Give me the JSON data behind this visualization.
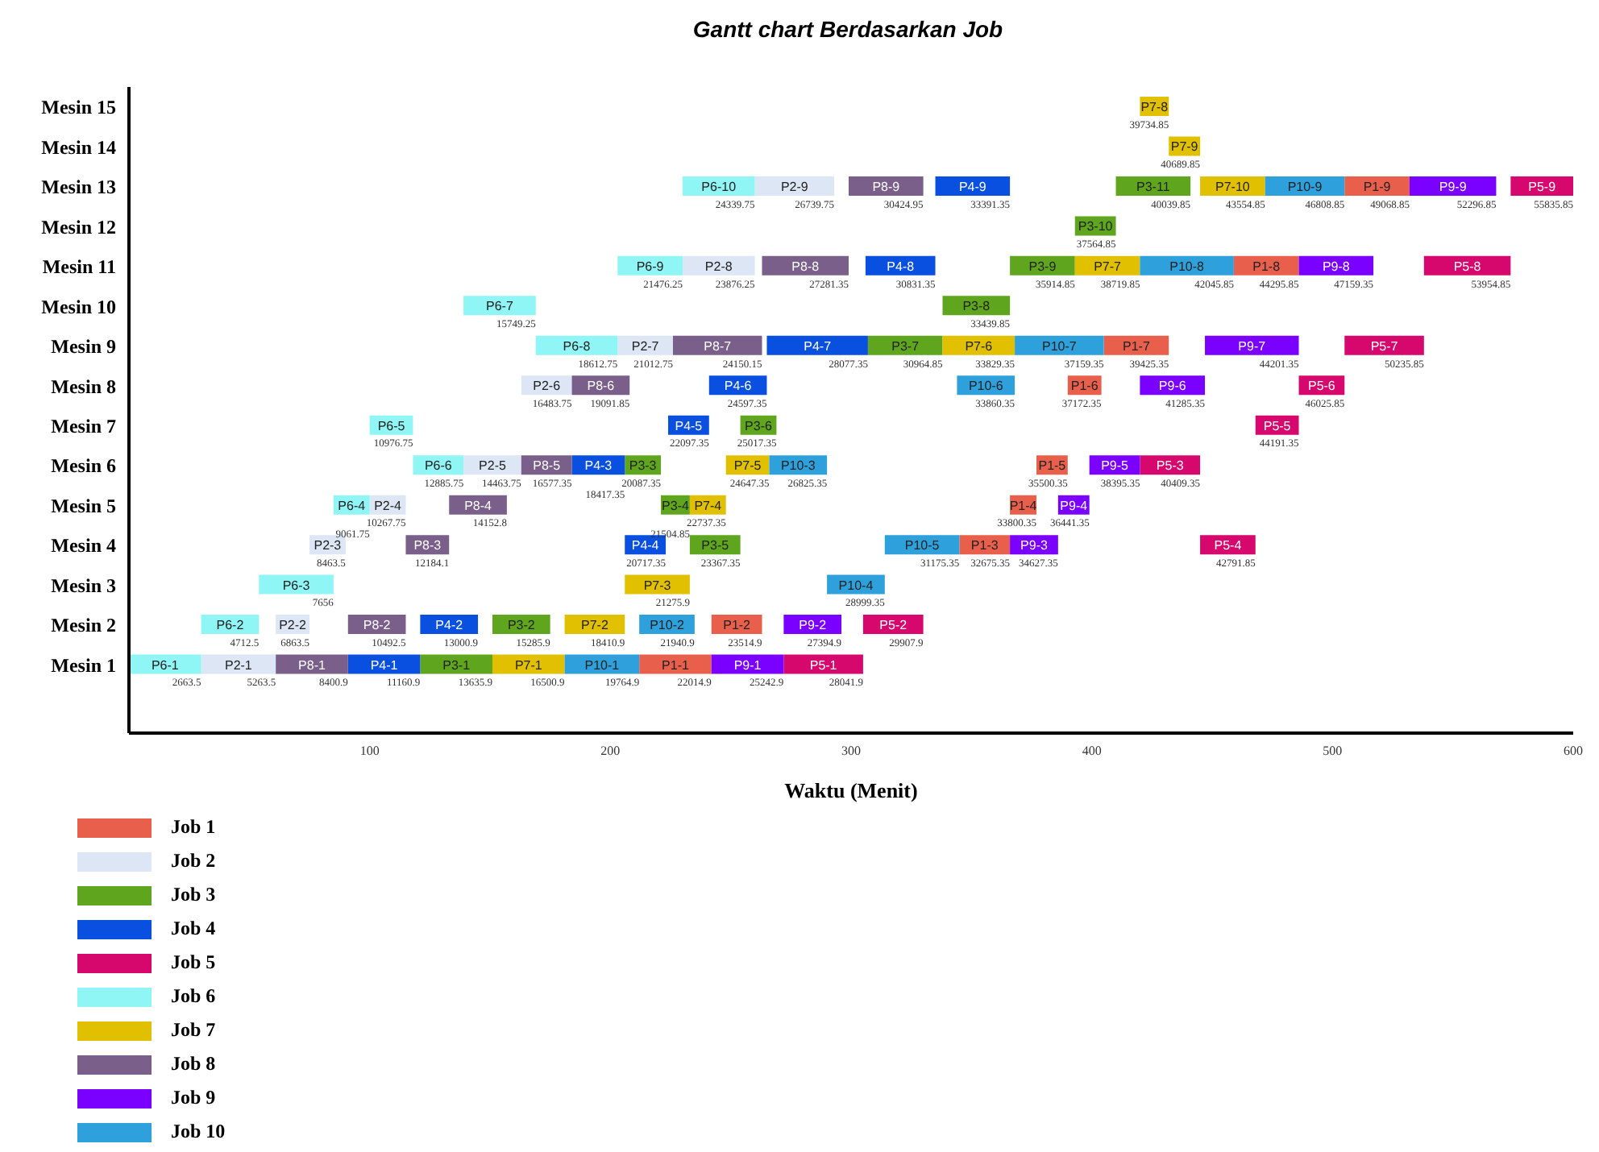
{
  "chart_data": {
    "type": "bar",
    "orientation": "horizontal",
    "title": "Gantt chart Berdasarkan Job",
    "xlabel": "Waktu (Menit)",
    "legend": "bottom left",
    "categories": [
      "Mesin 15",
      "Mesin 14",
      "Mesin 13",
      "Mesin 12",
      "Mesin 11",
      "Mesin 10",
      "Mesin 9",
      "Mesin 8",
      "Mesin 7",
      "Mesin 6",
      "Mesin 5",
      "Mesin 4",
      "Mesin 3",
      "Mesin 2",
      "Mesin 1"
    ],
    "xlim": [
      0,
      600
    ],
    "xticks": [
      100,
      200,
      300,
      400,
      500,
      600
    ],
    "series": [
      {
        "name": "Job 1",
        "color": "#e8604c",
        "base": [
          null,
          null,
          505,
          null,
          459,
          null,
          405,
          390,
          null,
          377,
          366,
          345,
          null,
          242,
          212
        ],
        "values": [
          null,
          null,
          27,
          null,
          27,
          null,
          27,
          14,
          null,
          13,
          11,
          21,
          null,
          21,
          30
        ],
        "value_labels": [
          null,
          null,
          "P1-9",
          null,
          "P1-8",
          null,
          "P1-7",
          "P1-6",
          null,
          "P1-5",
          "P1-4",
          "P1-3",
          null,
          "P1-2",
          "P1-1"
        ]
      },
      {
        "name": "Job 2",
        "color": "#dce6f5",
        "base": [
          null,
          null,
          260,
          null,
          230,
          null,
          203,
          163,
          null,
          139,
          100,
          75,
          null,
          61,
          30
        ],
        "values": [
          null,
          null,
          33,
          null,
          30,
          null,
          23,
          21,
          null,
          24,
          15,
          15,
          null,
          14,
          31
        ],
        "value_labels": [
          null,
          null,
          "P2-9",
          null,
          "P2-8",
          null,
          "P2-7",
          "P2-6",
          null,
          "P2-5",
          "P2-4",
          "P2-3",
          null,
          "P2-2",
          "P2-1"
        ]
      },
      {
        "name": "Job 3",
        "color": "#5fa61e",
        "base": [
          null,
          null,
          410,
          393,
          366,
          338,
          307,
          null,
          254,
          206,
          221,
          233,
          null,
          151,
          121
        ],
        "values": [
          null,
          null,
          31,
          17,
          27,
          28,
          31,
          null,
          15,
          15,
          12,
          21,
          null,
          24,
          30
        ],
        "value_labels": [
          null,
          null,
          "P3-11",
          "P3-10",
          "P3-9",
          "P3-8",
          "P3-7",
          null,
          "P3-6",
          "P3-3",
          "P3-4",
          "P3-5",
          null,
          "P3-2",
          "P3-1"
        ]
      },
      {
        "name": "Job 4",
        "color": "#0a50e0",
        "base": [
          null,
          null,
          335,
          null,
          306,
          null,
          265,
          241,
          224,
          184,
          null,
          206,
          null,
          121,
          91
        ],
        "values": [
          null,
          null,
          31,
          null,
          29,
          null,
          42,
          24,
          17,
          22,
          null,
          17,
          null,
          24,
          30
        ],
        "value_labels": [
          null,
          null,
          "P4-9",
          null,
          "P4-8",
          null,
          "P4-7",
          "P4-6",
          "P4-5",
          "P4-3",
          null,
          "P4-4",
          null,
          "P4-2",
          "P4-1"
        ]
      },
      {
        "name": "Job 5",
        "color": "#d6086e",
        "base": [
          null,
          null,
          574,
          null,
          538,
          null,
          505,
          486,
          468,
          420,
          null,
          445,
          null,
          305,
          272
        ],
        "values": [
          null,
          null,
          26,
          null,
          36,
          null,
          33,
          19,
          18,
          25,
          null,
          23,
          null,
          25,
          33
        ],
        "value_labels": [
          null,
          null,
          "P5-9",
          null,
          "P5-8",
          null,
          "P5-7",
          "P5-6",
          "P5-5",
          "P5-3",
          null,
          "P5-4",
          null,
          "P5-2",
          "P5-1"
        ]
      },
      {
        "name": "Job 6",
        "color": "#8ff5f5",
        "base": [
          null,
          null,
          230,
          null,
          203,
          139,
          169,
          null,
          100,
          118,
          85,
          null,
          54,
          30,
          0
        ],
        "values": [
          null,
          null,
          30,
          null,
          27,
          30,
          34,
          null,
          18,
          21,
          15,
          null,
          31,
          24,
          30
        ],
        "value_labels": [
          null,
          null,
          "P6-10",
          null,
          "P6-9",
          "P6-7",
          "P6-8",
          null,
          "P6-5",
          "P6-6",
          "P6-4",
          null,
          "P6-3",
          "P6-2",
          "P6-1"
        ]
      },
      {
        "name": "Job 7",
        "color": "#e0c000",
        "base": [
          420,
          432,
          445,
          null,
          393,
          null,
          338,
          null,
          null,
          248,
          233,
          null,
          206,
          181,
          151
        ],
        "values": [
          12,
          13,
          27,
          null,
          27,
          null,
          30,
          null,
          null,
          18,
          15,
          null,
          27,
          25,
          30
        ],
        "value_labels": [
          "P7-8",
          "P7-9",
          "P7-10",
          null,
          "P7-7",
          null,
          "P7-6",
          null,
          null,
          "P7-5",
          "P7-4",
          null,
          "P7-3",
          "P7-2",
          "P7-1"
        ]
      },
      {
        "name": "Job 8",
        "color": "#7a5f8a",
        "base": [
          null,
          null,
          299,
          null,
          263,
          null,
          226,
          184,
          null,
          163,
          133,
          115,
          null,
          91,
          61
        ],
        "values": [
          null,
          null,
          31,
          null,
          36,
          null,
          37,
          24,
          null,
          21,
          24,
          18,
          null,
          24,
          30
        ],
        "value_labels": [
          null,
          null,
          "P8-9",
          null,
          "P8-8",
          null,
          "P8-7",
          "P8-6",
          null,
          "P8-5",
          "P8-4",
          "P8-3",
          null,
          "P8-2",
          "P8-1"
        ]
      },
      {
        "name": "Job 9",
        "color": "#7a00ff",
        "base": [
          null,
          null,
          532,
          null,
          486,
          null,
          447,
          420,
          null,
          399,
          386,
          366,
          null,
          272,
          242
        ],
        "values": [
          null,
          null,
          36,
          null,
          31,
          null,
          39,
          27,
          null,
          21,
          13,
          20,
          null,
          24,
          30
        ],
        "value_labels": [
          null,
          null,
          "P9-9",
          null,
          "P9-8",
          null,
          "P9-7",
          "P9-6",
          null,
          "P9-5",
          "P9-4",
          "P9-3",
          null,
          "P9-2",
          "P9-1"
        ]
      },
      {
        "name": "Job 10",
        "color": "#2ea0db",
        "base": [
          null,
          null,
          472,
          null,
          420,
          null,
          368,
          344,
          null,
          266,
          null,
          314,
          290,
          212,
          181
        ],
        "values": [
          null,
          null,
          33,
          null,
          39,
          null,
          37,
          24,
          null,
          24,
          null,
          31,
          24,
          23,
          31
        ],
        "value_labels": [
          null,
          null,
          "P10-9",
          null,
          "P10-8",
          null,
          "P10-7",
          "P10-6",
          null,
          "P10-3",
          null,
          "P10-5",
          "P10-4",
          "P10-2",
          "P10-1"
        ]
      }
    ],
    "annotations": [
      {
        "text": "22014.9",
        "x": 242,
        "y": "Mesin 1"
      },
      {
        "text": "23514.9",
        "x": 263,
        "y": "Mesin 2"
      },
      {
        "text": "32675.35",
        "x": 366,
        "y": "Mesin 4"
      },
      {
        "text": "33800.35",
        "x": 377,
        "y": "Mesin 5"
      },
      {
        "text": "35500.35",
        "x": 390,
        "y": "Mesin 6"
      },
      {
        "text": "37172.35",
        "x": 404,
        "y": "Mesin 8"
      },
      {
        "text": "39425.35",
        "x": 432,
        "y": "Mesin 9"
      },
      {
        "text": "44295.85",
        "x": 486,
        "y": "Mesin 11"
      },
      {
        "text": "49068.85",
        "x": 532,
        "y": "Mesin 13"
      },
      {
        "text": "5263.5",
        "x": 61,
        "y": "Mesin 1"
      },
      {
        "text": "6863.5",
        "x": 75,
        "y": "Mesin 2"
      },
      {
        "text": "8463.5",
        "x": 90,
        "y": "Mesin 4"
      },
      {
        "text": "10267.75",
        "x": 115,
        "y": "Mesin 5"
      },
      {
        "text": "14463.75",
        "x": 163,
        "y": "Mesin 6"
      },
      {
        "text": "16483.75",
        "x": 184,
        "y": "Mesin 8"
      },
      {
        "text": "21012.75",
        "x": 226,
        "y": "Mesin 9"
      },
      {
        "text": "23876.25",
        "x": 260,
        "y": "Mesin 11"
      },
      {
        "text": "26739.75",
        "x": 293,
        "y": "Mesin 13"
      },
      {
        "text": "13635.9",
        "x": 151,
        "y": "Mesin 1"
      },
      {
        "text": "15285.9",
        "x": 175,
        "y": "Mesin 2"
      },
      {
        "text": "20087.35",
        "x": 221,
        "y": "Mesin 6"
      },
      {
        "text": "21504.85",
        "x": 233,
        "y": "Mesin 5"
      },
      {
        "text": "23367.35",
        "x": 254,
        "y": "Mesin 4"
      },
      {
        "text": "25017.35",
        "x": 269,
        "y": "Mesin 7"
      },
      {
        "text": "30964.85",
        "x": 338,
        "y": "Mesin 9"
      },
      {
        "text": "33439.85",
        "x": 366,
        "y": "Mesin 10"
      },
      {
        "text": "35914.85",
        "x": 393,
        "y": "Mesin 11"
      },
      {
        "text": "37564.85",
        "x": 410,
        "y": "Mesin 12"
      },
      {
        "text": "40039.85",
        "x": 441,
        "y": "Mesin 13"
      },
      {
        "text": "11160.9",
        "x": 121,
        "y": "Mesin 1"
      },
      {
        "text": "13000.9",
        "x": 145,
        "y": "Mesin 2"
      },
      {
        "text": "18417.35",
        "x": 206,
        "y": "Mesin 6"
      },
      {
        "text": "20717.35",
        "x": 223,
        "y": "Mesin 4"
      },
      {
        "text": "22097.35",
        "x": 241,
        "y": "Mesin 7"
      },
      {
        "text": "24597.35",
        "x": 265,
        "y": "Mesin 8"
      },
      {
        "text": "28077.35",
        "x": 307,
        "y": "Mesin 9"
      },
      {
        "text": "30831.35",
        "x": 335,
        "y": "Mesin 11"
      },
      {
        "text": "33391.35",
        "x": 366,
        "y": "Mesin 13"
      },
      {
        "text": "28041.9",
        "x": 305,
        "y": "Mesin 1"
      },
      {
        "text": "29907.9",
        "x": 330,
        "y": "Mesin 2"
      },
      {
        "text": "40409.35",
        "x": 445,
        "y": "Mesin 6"
      },
      {
        "text": "42791.85",
        "x": 468,
        "y": "Mesin 4"
      },
      {
        "text": "44191.35",
        "x": 486,
        "y": "Mesin 7"
      },
      {
        "text": "46025.85",
        "x": 505,
        "y": "Mesin 8"
      },
      {
        "text": "50235.85",
        "x": 538,
        "y": "Mesin 9"
      },
      {
        "text": "53954.85",
        "x": 574,
        "y": "Mesin 11"
      },
      {
        "text": "55835.85",
        "x": 600,
        "y": "Mesin 13"
      },
      {
        "text": "2663.5",
        "x": 30,
        "y": "Mesin 1"
      },
      {
        "text": "4712.5",
        "x": 54,
        "y": "Mesin 2"
      },
      {
        "text": "7656",
        "x": 85,
        "y": "Mesin 3"
      },
      {
        "text": "9061.75",
        "x": 100,
        "y": "Mesin 5"
      },
      {
        "text": "10976.75",
        "x": 118,
        "y": "Mesin 7"
      },
      {
        "text": "12885.75",
        "x": 139,
        "y": "Mesin 6"
      },
      {
        "text": "15749.25",
        "x": 169,
        "y": "Mesin 10"
      },
      {
        "text": "18612.75",
        "x": 203,
        "y": "Mesin 9"
      },
      {
        "text": "21476.25",
        "x": 230,
        "y": "Mesin 11"
      },
      {
        "text": "24339.75",
        "x": 260,
        "y": "Mesin 13"
      },
      {
        "text": "16500.9",
        "x": 181,
        "y": "Mesin 1"
      },
      {
        "text": "18410.9",
        "x": 206,
        "y": "Mesin 2"
      },
      {
        "text": "21275.9",
        "x": 233,
        "y": "Mesin 3"
      },
      {
        "text": "22737.35",
        "x": 248,
        "y": "Mesin 5"
      },
      {
        "text": "24647.35",
        "x": 266,
        "y": "Mesin 6"
      },
      {
        "text": "33829.35",
        "x": 368,
        "y": "Mesin 9"
      },
      {
        "text": "38719.85",
        "x": 420,
        "y": "Mesin 11"
      },
      {
        "text": "39734.85",
        "x": 432,
        "y": "Mesin 15"
      },
      {
        "text": "40689.85",
        "x": 445,
        "y": "Mesin 14"
      },
      {
        "text": "43554.85",
        "x": 472,
        "y": "Mesin 13"
      },
      {
        "text": "8400.9",
        "x": 91,
        "y": "Mesin 1"
      },
      {
        "text": "10492.5",
        "x": 115,
        "y": "Mesin 2"
      },
      {
        "text": "12184.1",
        "x": 133,
        "y": "Mesin 4"
      },
      {
        "text": "14152.8",
        "x": 157,
        "y": "Mesin 5"
      },
      {
        "text": "16577.35",
        "x": 184,
        "y": "Mesin 6"
      },
      {
        "text": "19091.85",
        "x": 208,
        "y": "Mesin 8"
      },
      {
        "text": "24150.15",
        "x": 263,
        "y": "Mesin 9"
      },
      {
        "text": "27281.35",
        "x": 299,
        "y": "Mesin 11"
      },
      {
        "text": "30424.95",
        "x": 330,
        "y": "Mesin 13"
      },
      {
        "text": "25242.9",
        "x": 272,
        "y": "Mesin 1"
      },
      {
        "text": "27394.9",
        "x": 296,
        "y": "Mesin 2"
      },
      {
        "text": "34627.35",
        "x": 386,
        "y": "Mesin 4"
      },
      {
        "text": "36441.35",
        "x": 399,
        "y": "Mesin 5"
      },
      {
        "text": "38395.35",
        "x": 420,
        "y": "Mesin 6"
      },
      {
        "text": "41285.35",
        "x": 447,
        "y": "Mesin 8"
      },
      {
        "text": "44201.35",
        "x": 486,
        "y": "Mesin 9"
      },
      {
        "text": "47159.35",
        "x": 517,
        "y": "Mesin 11"
      },
      {
        "text": "52296.85",
        "x": 568,
        "y": "Mesin 13"
      },
      {
        "text": "19764.9",
        "x": 212,
        "y": "Mesin 1"
      },
      {
        "text": "21940.9",
        "x": 235,
        "y": "Mesin 2"
      },
      {
        "text": "26825.35",
        "x": 290,
        "y": "Mesin 6"
      },
      {
        "text": "28999.35",
        "x": 314,
        "y": "Mesin 3"
      },
      {
        "text": "31175.35",
        "x": 345,
        "y": "Mesin 4"
      },
      {
        "text": "33860.35",
        "x": 368,
        "y": "Mesin 8"
      },
      {
        "text": "37159.35",
        "x": 405,
        "y": "Mesin 9"
      },
      {
        "text": "42045.85",
        "x": 459,
        "y": "Mesin 11"
      },
      {
        "text": "46808.85",
        "x": 505,
        "y": "Mesin 13"
      }
    ]
  }
}
